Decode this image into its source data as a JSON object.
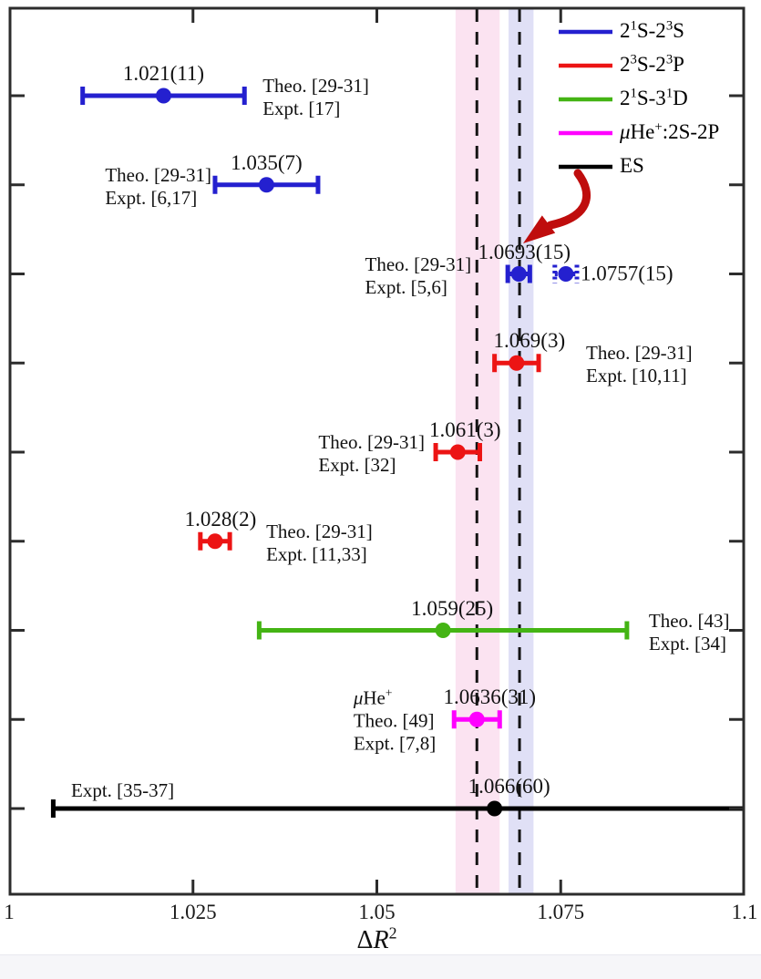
{
  "chart_data": {
    "type": "scatter",
    "title": "",
    "xlabel_segments": [
      {
        "t": "Δ"
      },
      {
        "t": "R",
        "italic": true
      },
      {
        "t": "2",
        "sup": true
      }
    ],
    "x_axis": {
      "min": 1.0,
      "max": 1.1,
      "ticks": [
        {
          "v": 1.0,
          "label": "1"
        },
        {
          "v": 1.025,
          "label": "1.025"
        },
        {
          "v": 1.05,
          "label": "1.05"
        },
        {
          "v": 1.075,
          "label": "1.075"
        },
        {
          "v": 1.1,
          "label": "1.1"
        }
      ],
      "grid": false
    },
    "legend": {
      "position": "top-right",
      "entries": [
        {
          "name": "2(1)S-2(3)S",
          "color": "#2420cf",
          "segments": [
            {
              "t": "2"
            },
            {
              "t": "1",
              "sup": true
            },
            {
              "t": "S-2"
            },
            {
              "t": "3",
              "sup": true
            },
            {
              "t": "S"
            }
          ]
        },
        {
          "name": "2(3)S-2(3)P",
          "color": "#ec1414",
          "segments": [
            {
              "t": "2"
            },
            {
              "t": "3",
              "sup": true
            },
            {
              "t": "S-2"
            },
            {
              "t": "3",
              "sup": true
            },
            {
              "t": "P"
            }
          ]
        },
        {
          "name": "2(1)S-3(1)D",
          "color": "#44b414",
          "segments": [
            {
              "t": "2"
            },
            {
              "t": "1",
              "sup": true
            },
            {
              "t": "S-3"
            },
            {
              "t": "1",
              "sup": true
            },
            {
              "t": "D"
            }
          ]
        },
        {
          "name": "muHe+:2S-2P",
          "color": "#ff00ff",
          "segments": [
            {
              "t": "μ",
              "italic": true
            },
            {
              "t": "He"
            },
            {
              "t": "+",
              "sup": true
            },
            {
              "t": ":2S-2P"
            }
          ]
        },
        {
          "name": "ES",
          "color": "#000000",
          "segments": [
            {
              "t": "ES"
            }
          ]
        }
      ]
    },
    "bands": [
      {
        "name": "muHe-band",
        "x_min": 1.0607,
        "x_max": 1.0667,
        "color": "#fbe3f1",
        "dashed_line_at": 1.0636
      },
      {
        "name": "helium-band",
        "x_min": 1.0679,
        "x_max": 1.0713,
        "color": "#e0e0f6",
        "dashed_line_at": 1.0694
      }
    ],
    "dashed_line_color": "#141414",
    "arrow_color": "#bf0d0d",
    "points": [
      {
        "row": 0,
        "series": "2(1)S-2(3)S",
        "color": "#2420cf",
        "style": "solid",
        "value": 1.021,
        "error": 0.011,
        "value_label": "1.021(11)",
        "val_dx": 0,
        "refs": [
          "Theo. [29-31]",
          "Expt. [17]"
        ],
        "ref_side": "right",
        "ref_dx": 8
      },
      {
        "row": 1,
        "series": "2(1)S-2(3)S",
        "color": "#2420cf",
        "style": "solid",
        "value": 1.035,
        "error": 0.007,
        "value_label": "1.035(7)",
        "val_dx": 0,
        "refs": [
          "Theo. [29-31]",
          "Expt. [6,17]"
        ],
        "ref_side": "left",
        "ref_dx": 8
      },
      {
        "row": 2,
        "series": "2(1)S-2(3)S",
        "color": "#2420cf",
        "style": "solid",
        "value": 1.0693,
        "error": 0.0015,
        "value_label": "1.0693(15)",
        "val_dx": 6,
        "refs": [
          "Theo. [29-31]",
          "Expt. [5,6]"
        ],
        "ref_side": "left",
        "ref_dx": -28
      },
      {
        "row": 2,
        "series": "2(1)S-2(3)S",
        "color": "#2420cf",
        "style": "dotted",
        "value": 1.0757,
        "error": 0.0015,
        "value_label": "1.0757(15)",
        "value_side": "right",
        "refs": [],
        "ref_side": "none"
      },
      {
        "row": 3,
        "series": "2(3)S-2(3)P",
        "color": "#ec1414",
        "style": "solid",
        "value": 1.069,
        "error": 0.003,
        "value_label": "1.069(3)",
        "val_dx": 14,
        "refs": [
          "Theo. [29-31]",
          "Expt. [10,11]"
        ],
        "ref_side": "right",
        "ref_dx": 40
      },
      {
        "row": 4,
        "series": "2(3)S-2(3)P",
        "color": "#ec1414",
        "style": "solid",
        "value": 1.061,
        "error": 0.003,
        "value_label": "1.061(3)",
        "val_dx": 8,
        "refs": [
          "Theo. [29-31]",
          "Expt. [32]"
        ],
        "ref_side": "left",
        "ref_dx": 0
      },
      {
        "row": 5,
        "series": "2(3)S-2(3)P",
        "color": "#ec1414",
        "style": "solid",
        "value": 1.028,
        "error": 0.002,
        "value_label": "1.028(2)",
        "val_dx": 6,
        "refs": [
          "Theo. [29-31]",
          "Expt. [11,33]"
        ],
        "ref_side": "right",
        "ref_dx": 28
      },
      {
        "row": 6,
        "series": "2(1)S-3(1)D",
        "color": "#44b414",
        "style": "solid",
        "value": 1.059,
        "error": 0.025,
        "value_label": "1.059(25)",
        "val_dx": 10,
        "refs": [
          "Theo. [43]",
          "Expt. [34]"
        ],
        "ref_side": "right",
        "ref_dx": 12
      },
      {
        "row": 7,
        "series": "muHe+:2S-2P",
        "color": "#ff00ff",
        "style": "solid",
        "value": 1.0636,
        "error": 0.0031,
        "value_label": "1.0636(31)",
        "val_dx": 14,
        "refs": [
          [
            {
              "t": "μ",
              "italic": true
            },
            {
              "t": "He"
            },
            {
              "t": "+",
              "sup": true
            }
          ],
          "Theo. [49]",
          "Expt. [7,8]"
        ],
        "ref_side": "left",
        "ref_dx": -8
      },
      {
        "row": 8,
        "series": "ES",
        "color": "#000000",
        "style": "solid",
        "value": 1.066,
        "error": 0.06,
        "value_label": "1.066(60)",
        "val_dx": 16,
        "refs": [
          "Expt. [35-37]"
        ],
        "ref_side": "above-left"
      }
    ]
  }
}
